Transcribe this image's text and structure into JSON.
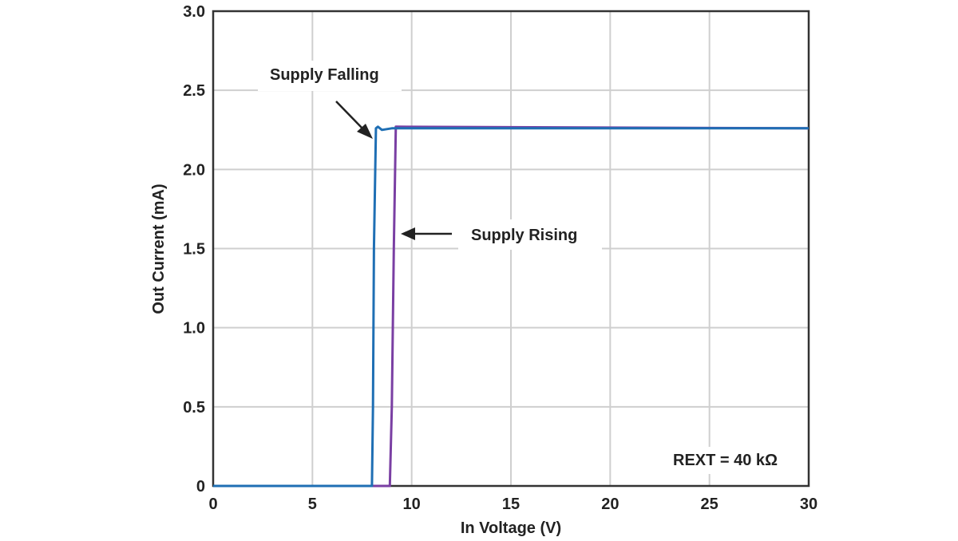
{
  "chart_data": {
    "type": "line",
    "title": "",
    "xlabel": "In Voltage (V)",
    "ylabel": "Out Current (mA)",
    "xlim": [
      0,
      30
    ],
    "ylim": [
      0,
      3.0
    ],
    "xticks": [
      0,
      5,
      10,
      15,
      20,
      25,
      30
    ],
    "xtick_labels": [
      "0",
      "5",
      "10",
      "15",
      "20",
      "25",
      "30"
    ],
    "yticks": [
      0,
      0.5,
      1.0,
      1.5,
      2.0,
      2.5,
      3.0
    ],
    "ytick_labels": [
      "0",
      "0.5",
      "1.0",
      "1.5",
      "2.0",
      "2.5",
      "3.0"
    ],
    "grid": true,
    "series": [
      {
        "name": "Supply Falling",
        "color": "#1f6fb4",
        "x": [
          0,
          8.0,
          8.05,
          8.1,
          8.2,
          8.3,
          8.5,
          9.0,
          30
        ],
        "y": [
          0,
          0,
          0.5,
          1.5,
          2.26,
          2.27,
          2.25,
          2.26,
          2.26
        ]
      },
      {
        "name": "Supply Rising",
        "color": "#7a3fa3",
        "x": [
          0,
          7.2,
          8.9,
          9.0,
          9.1,
          9.2,
          30
        ],
        "y": [
          0,
          0,
          0,
          0.5,
          1.5,
          2.27,
          2.26
        ]
      }
    ],
    "annotations": [
      {
        "text": "Supply Falling",
        "points_to_x": 8.0,
        "points_to_y": 2.2
      },
      {
        "text": "Supply Rising",
        "points_to_x": 9.35,
        "points_to_y": 1.6
      },
      {
        "text": "REXT = 40 kΩ"
      }
    ]
  }
}
